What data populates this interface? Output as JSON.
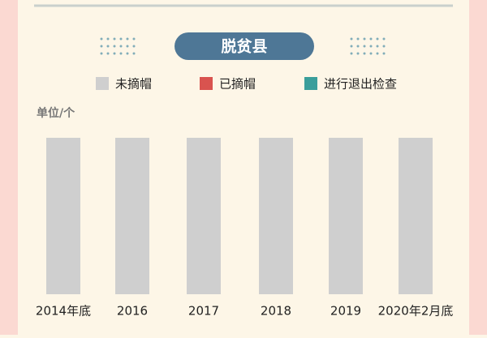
{
  "chart_data": {
    "type": "bar",
    "stacked": true,
    "title": "脱贫县",
    "unit": "单位/个",
    "categories": [
      "2014年底",
      "2016",
      "2017",
      "2018",
      "2019",
      "2020年2月底"
    ],
    "series": [
      {
        "name": "未摘帽",
        "color": "#cfcfcf",
        "values": [
          832,
          832,
          832,
          832,
          832,
          832
        ]
      },
      {
        "name": "已摘帽",
        "color": "#d9534f",
        "values": [
          null,
          null,
          null,
          null,
          null,
          null
        ]
      },
      {
        "name": "进行退出检查",
        "color": "#3a9e9b",
        "values": [
          null,
          null,
          null,
          null,
          null,
          null
        ]
      }
    ]
  }
}
